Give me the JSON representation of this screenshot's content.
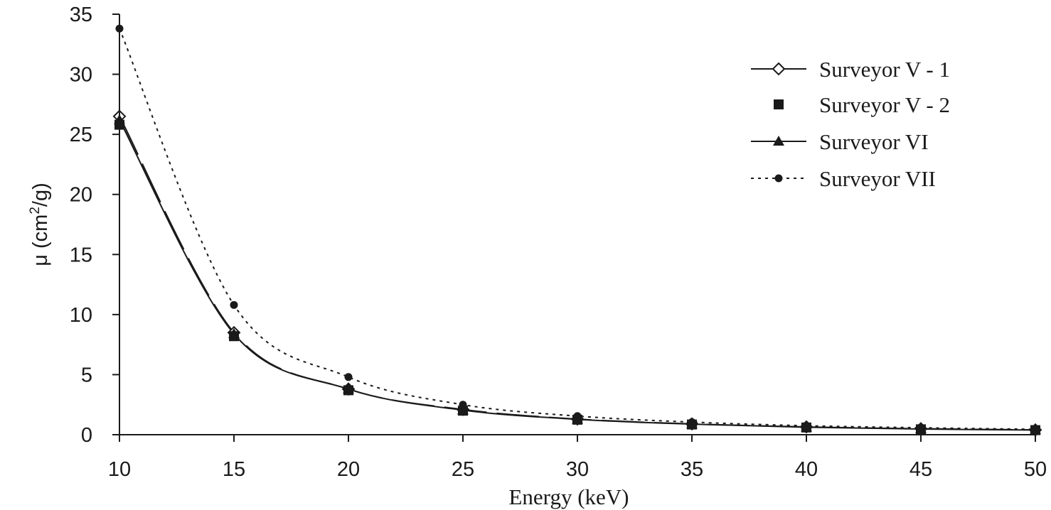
{
  "chart_data": {
    "type": "line",
    "title": "",
    "xlabel": "Energy (keV)",
    "ylabel_prefix": "μ (cm",
    "ylabel_sup": "2",
    "ylabel_suffix": "/g)",
    "xlim": [
      10,
      50
    ],
    "ylim": [
      0,
      35
    ],
    "xticks": [
      "10",
      "15",
      "20",
      "25",
      "30",
      "35",
      "40",
      "45",
      "50"
    ],
    "yticks": [
      "0",
      "5",
      "10",
      "15",
      "20",
      "25",
      "30",
      "35"
    ],
    "legend_position": "top-right",
    "grid": false,
    "x": [
      10,
      15,
      20,
      25,
      30,
      35,
      40,
      45,
      50
    ],
    "series": [
      {
        "name": "Surveyor V - 1",
        "marker": "diamond-open",
        "line": "solid",
        "values": [
          26.5,
          8.5,
          3.8,
          2.1,
          1.3,
          0.9,
          0.65,
          0.5,
          0.4
        ]
      },
      {
        "name": "Surveyor V - 2",
        "marker": "square",
        "line": "none",
        "values": [
          25.8,
          8.2,
          3.7,
          2.0,
          1.25,
          0.85,
          0.6,
          0.45,
          0.38
        ]
      },
      {
        "name": "Surveyor VI",
        "marker": "triangle",
        "line": "solid",
        "values": [
          26.2,
          8.4,
          3.8,
          2.05,
          1.28,
          0.88,
          0.62,
          0.47,
          0.39
        ]
      },
      {
        "name": "Surveyor VII",
        "marker": "circle",
        "line": "dotted",
        "values": [
          33.8,
          10.8,
          4.8,
          2.5,
          1.55,
          1.05,
          0.75,
          0.58,
          0.45
        ]
      }
    ]
  }
}
